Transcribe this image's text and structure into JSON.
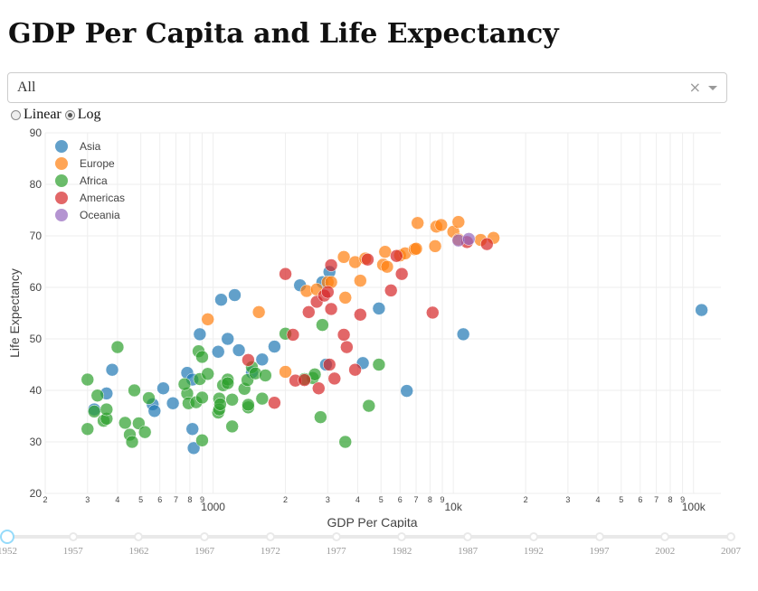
{
  "title": "GDP Per Capita and Life Expectancy",
  "dropdown": {
    "value": "All",
    "clear_symbol": "×"
  },
  "scale_options": [
    {
      "label": "Linear",
      "checked": false
    },
    {
      "label": "Log",
      "checked": true
    }
  ],
  "slider": {
    "marks": [
      "1952",
      "1957",
      "1962",
      "1967",
      "1972",
      "1977",
      "1982",
      "1987",
      "1992",
      "1997",
      "2002",
      "2007"
    ],
    "selected": "1952"
  },
  "chart_data": {
    "type": "scatter",
    "xlabel": "GDP Per Capita",
    "ylabel": "Life Expectancy",
    "xscale": "log",
    "xlim": [
      200,
      130000
    ],
    "ylim": [
      20,
      90
    ],
    "yticks": [
      20,
      30,
      40,
      50,
      60,
      70,
      80,
      90
    ],
    "xticks": [
      {
        "v": 200,
        "label": "2"
      },
      {
        "v": 300,
        "label": "3"
      },
      {
        "v": 400,
        "label": "4"
      },
      {
        "v": 500,
        "label": "5"
      },
      {
        "v": 600,
        "label": "6"
      },
      {
        "v": 700,
        "label": "7"
      },
      {
        "v": 800,
        "label": "8"
      },
      {
        "v": 900,
        "label": "9"
      },
      {
        "v": 1000,
        "label": "1000"
      },
      {
        "v": 2000,
        "label": "2"
      },
      {
        "v": 3000,
        "label": "3"
      },
      {
        "v": 4000,
        "label": "4"
      },
      {
        "v": 5000,
        "label": "5"
      },
      {
        "v": 6000,
        "label": "6"
      },
      {
        "v": 7000,
        "label": "7"
      },
      {
        "v": 8000,
        "label": "8"
      },
      {
        "v": 9000,
        "label": "9"
      },
      {
        "v": 10000,
        "label": "10k"
      },
      {
        "v": 20000,
        "label": "2"
      },
      {
        "v": 30000,
        "label": "3"
      },
      {
        "v": 40000,
        "label": "4"
      },
      {
        "v": 50000,
        "label": "5"
      },
      {
        "v": 60000,
        "label": "6"
      },
      {
        "v": 70000,
        "label": "7"
      },
      {
        "v": 80000,
        "label": "8"
      },
      {
        "v": 90000,
        "label": "9"
      },
      {
        "v": 100000,
        "label": "100k"
      }
    ],
    "grid": true,
    "legend_position": "top-left",
    "series": [
      {
        "name": "Asia",
        "color": "#1f77b4",
        "points": [
          [
            380,
            44
          ],
          [
            880,
            50.9
          ],
          [
            1080,
            57.6
          ],
          [
            1230,
            58.5
          ],
          [
            1150,
            50
          ],
          [
            1050,
            47.5
          ],
          [
            1280,
            47.8
          ],
          [
            1800,
            48.5
          ],
          [
            1600,
            46
          ],
          [
            1450,
            43.5
          ],
          [
            780,
            43.4
          ],
          [
            820,
            42.1
          ],
          [
            560,
            37.3
          ],
          [
            680,
            37.5
          ],
          [
            570,
            36
          ],
          [
            320,
            36.3
          ],
          [
            360,
            39.4
          ],
          [
            620,
            40.4
          ],
          [
            830,
            28.8
          ],
          [
            820,
            32.5
          ],
          [
            2300,
            60.4
          ],
          [
            2850,
            61
          ],
          [
            3050,
            63
          ],
          [
            2950,
            45
          ],
          [
            4200,
            45.3
          ],
          [
            4900,
            55.9
          ],
          [
            6400,
            39.9
          ],
          [
            11000,
            50.9
          ],
          [
            108000,
            55.6
          ]
        ]
      },
      {
        "name": "Europe",
        "color": "#ff7f0e",
        "points": [
          [
            950,
            53.8
          ],
          [
            1550,
            55.2
          ],
          [
            2000,
            43.6
          ],
          [
            2450,
            59.3
          ],
          [
            2700,
            59.6
          ],
          [
            3000,
            61
          ],
          [
            3100,
            61
          ],
          [
            3500,
            65.9
          ],
          [
            3550,
            58
          ],
          [
            4100,
            61.3
          ],
          [
            3900,
            64.9
          ],
          [
            4300,
            65.6
          ],
          [
            5100,
            64.4
          ],
          [
            5200,
            66.9
          ],
          [
            5300,
            64
          ],
          [
            6000,
            66.2
          ],
          [
            6300,
            66.6
          ],
          [
            6900,
            67.4
          ],
          [
            7000,
            67.5
          ],
          [
            7100,
            72.5
          ],
          [
            8400,
            68
          ],
          [
            8500,
            71.8
          ],
          [
            8900,
            72.1
          ],
          [
            10000,
            70.8
          ],
          [
            10500,
            69.3
          ],
          [
            10500,
            72.7
          ],
          [
            13000,
            69.2
          ],
          [
            14700,
            69.6
          ]
        ]
      },
      {
        "name": "Africa",
        "color": "#2ca02c",
        "points": [
          [
            300,
            42.1
          ],
          [
            300,
            32.5
          ],
          [
            320,
            35.9
          ],
          [
            330,
            39
          ],
          [
            350,
            34.1
          ],
          [
            360,
            34.5
          ],
          [
            360,
            36.3
          ],
          [
            400,
            48.4
          ],
          [
            430,
            33.7
          ],
          [
            450,
            31.4
          ],
          [
            460,
            30
          ],
          [
            470,
            40
          ],
          [
            490,
            33.6
          ],
          [
            520,
            31.9
          ],
          [
            540,
            38.5
          ],
          [
            780,
            39.4
          ],
          [
            760,
            41.2
          ],
          [
            790,
            37.5
          ],
          [
            850,
            37.7
          ],
          [
            870,
            47.6
          ],
          [
            900,
            46.5
          ],
          [
            880,
            42.2
          ],
          [
            900,
            38.6
          ],
          [
            900,
            30.3
          ],
          [
            950,
            43.2
          ],
          [
            1050,
            35.7
          ],
          [
            1060,
            38.4
          ],
          [
            1060,
            36.3
          ],
          [
            1070,
            37.3
          ],
          [
            1100,
            41
          ],
          [
            1150,
            42.1
          ],
          [
            1150,
            41.4
          ],
          [
            1200,
            38.2
          ],
          [
            1200,
            33
          ],
          [
            1400,
            36.7
          ],
          [
            1400,
            37.2
          ],
          [
            1350,
            40.3
          ],
          [
            1390,
            42
          ],
          [
            1450,
            44.5
          ],
          [
            1500,
            43.3
          ],
          [
            1600,
            38.4
          ],
          [
            1650,
            42.9
          ],
          [
            2000,
            51
          ],
          [
            2600,
            42.4
          ],
          [
            2650,
            43.1
          ],
          [
            2400,
            42.2
          ],
          [
            2850,
            52.7
          ],
          [
            2800,
            34.8
          ],
          [
            3550,
            30
          ],
          [
            4450,
            37
          ],
          [
            4900,
            45
          ]
        ]
      },
      {
        "name": "Americas",
        "color": "#d62728",
        "points": [
          [
            1400,
            45.9
          ],
          [
            1800,
            37.6
          ],
          [
            2000,
            62.6
          ],
          [
            2150,
            50.8
          ],
          [
            2200,
            41.9
          ],
          [
            2400,
            42
          ],
          [
            2500,
            55.2
          ],
          [
            2700,
            57.2
          ],
          [
            2750,
            40.4
          ],
          [
            2900,
            58.4
          ],
          [
            3000,
            59.1
          ],
          [
            3050,
            45
          ],
          [
            3100,
            64.3
          ],
          [
            3100,
            55.8
          ],
          [
            3200,
            42.3
          ],
          [
            3500,
            50.8
          ],
          [
            3600,
            48.4
          ],
          [
            3900,
            44
          ],
          [
            4100,
            54.7
          ],
          [
            4400,
            65.4
          ],
          [
            5500,
            59.4
          ],
          [
            5800,
            66.1
          ],
          [
            6100,
            62.6
          ],
          [
            8200,
            55.1
          ],
          [
            11400,
            68.8
          ],
          [
            13800,
            68.4
          ]
        ]
      },
      {
        "name": "Oceania",
        "color": "#9467bd",
        "points": [
          [
            10500,
            69.1
          ],
          [
            11600,
            69.4
          ]
        ]
      }
    ]
  }
}
